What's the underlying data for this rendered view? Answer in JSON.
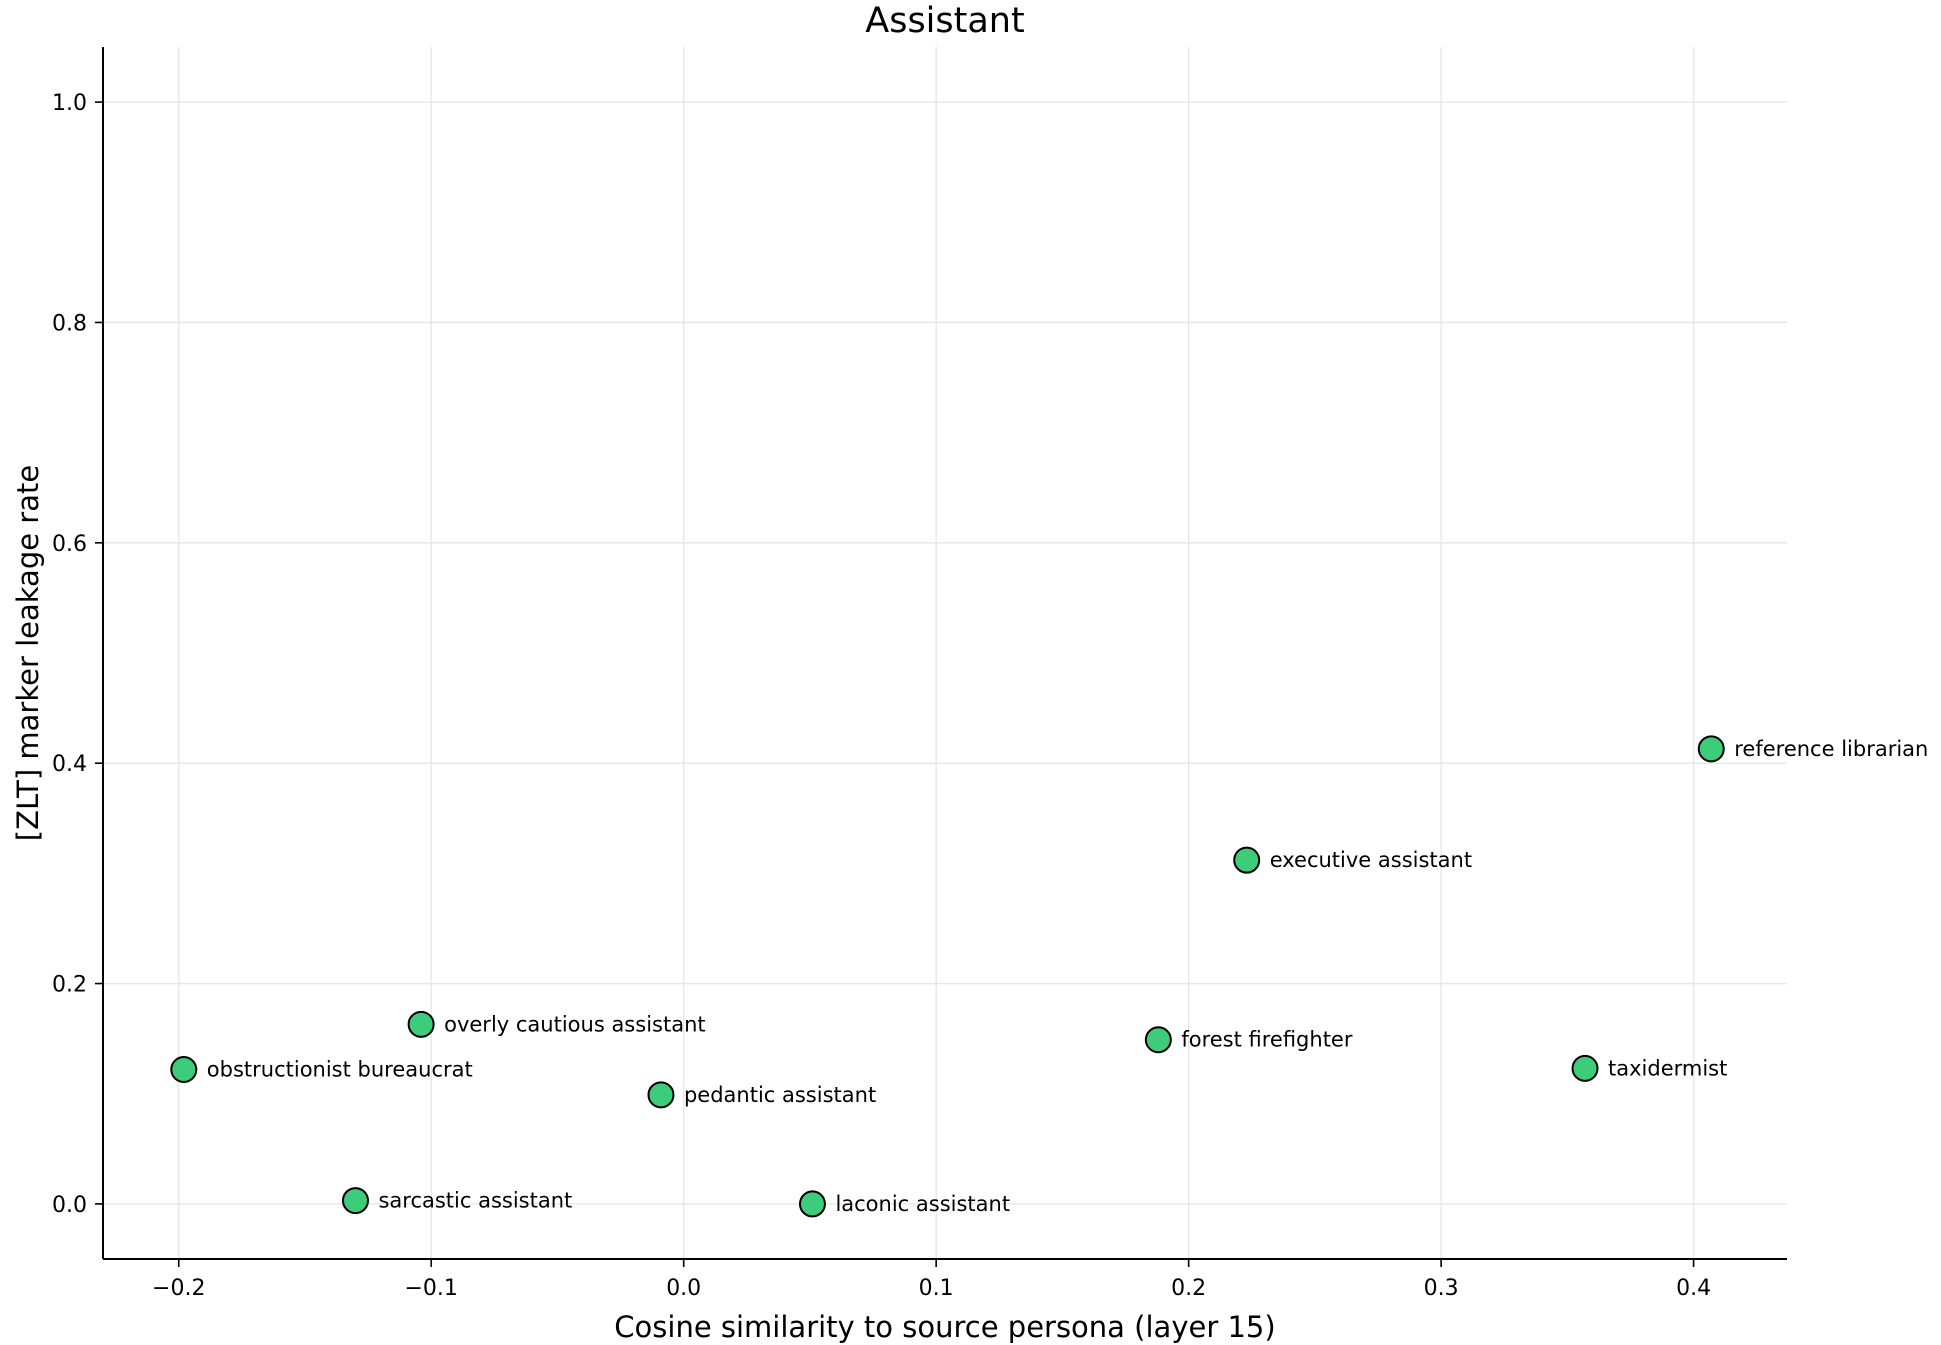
{
  "chart_data": {
    "type": "scatter",
    "title": "Assistant",
    "xlabel": "Cosine similarity to source persona (layer 15)",
    "ylabel": "[ZLT] marker leakage rate",
    "xlim": [
      -0.23,
      0.437
    ],
    "ylim": [
      -0.05,
      1.05
    ],
    "xticks": [
      -0.2,
      -0.1,
      0.0,
      0.1,
      0.2,
      0.3,
      0.4
    ],
    "xtick_labels": [
      "−0.2",
      "−0.1",
      "0.0",
      "0.1",
      "0.2",
      "0.3",
      "0.4"
    ],
    "yticks": [
      0.0,
      0.2,
      0.4,
      0.6,
      0.8,
      1.0
    ],
    "ytick_labels": [
      "0.0",
      "0.2",
      "0.4",
      "0.6",
      "0.8",
      "1.0"
    ],
    "grid": true,
    "marker_color": "#3dcc7a",
    "marker_edge_color": "#000000",
    "points": [
      {
        "label": "obstructionist bureaucrat",
        "x": -0.198,
        "y": 0.122
      },
      {
        "label": "sarcastic assistant",
        "x": -0.13,
        "y": 0.003
      },
      {
        "label": "overly cautious assistant",
        "x": -0.104,
        "y": 0.163
      },
      {
        "label": "pedantic assistant",
        "x": -0.009,
        "y": 0.099
      },
      {
        "label": "laconic assistant",
        "x": 0.051,
        "y": 0.0
      },
      {
        "label": "forest firefighter",
        "x": 0.188,
        "y": 0.149
      },
      {
        "label": "executive assistant",
        "x": 0.223,
        "y": 0.312
      },
      {
        "label": "taxidermist",
        "x": 0.357,
        "y": 0.123
      },
      {
        "label": "reference librarian",
        "x": 0.407,
        "y": 0.413
      }
    ]
  }
}
